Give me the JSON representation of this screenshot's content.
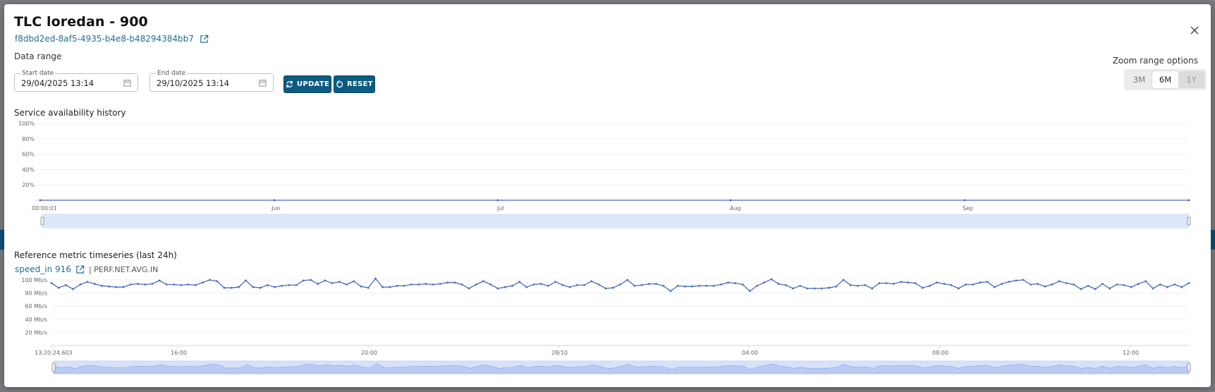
{
  "modal": {
    "title": "TLC loredan - 900",
    "uuid": "f8dbd2ed-8af5-4935-b4e8-b48294384bb7",
    "data_range_label": "Data range",
    "start_date": {
      "legend": "Start date",
      "value": "29/04/2025 13:14"
    },
    "end_date": {
      "legend": "End date",
      "value": "29/10/2025 13:14"
    },
    "update_label": "UPDATE",
    "reset_label": "RESET",
    "zoom": {
      "label": "Zoom range options",
      "options": [
        "3M",
        "6M",
        "1Y"
      ],
      "active": "6M",
      "disabled": "1Y"
    },
    "availability_title": "Service availability history",
    "metric_title": "Reference metric timeseries (last 24h)",
    "metric_link": "speed_in 916",
    "metric_code": "| PERF.NET.AVG.IN"
  },
  "colors": {
    "accent": "#0d5b80",
    "line": "#4a6bbf",
    "navigator": "#d6e2fb"
  },
  "chart_data": [
    {
      "type": "line",
      "title": "Service availability history",
      "y_ticks": [
        "100%",
        "80%",
        "60%",
        "40%",
        "20%"
      ],
      "ylim": [
        0,
        100
      ],
      "x_ticks": [
        "00:00:01",
        "Jun",
        "Jul",
        "Aug",
        "Sep"
      ],
      "series": [
        {
          "values": [
            0,
            0,
            0,
            0,
            0,
            0
          ]
        }
      ]
    },
    {
      "type": "line",
      "title": "Reference metric timeseries (last 24h)",
      "y_ticks": [
        "100 Mb/s",
        "80 Mb/s",
        "60 Mb/s",
        "40 Mb/s",
        "20 Mb/s"
      ],
      "ylim": [
        0,
        100
      ],
      "x_ticks": [
        "13:20:24.603",
        "16:00",
        "20:00",
        "28/10",
        "04:00",
        "08:00",
        "12:00"
      ],
      "series": [
        {
          "values": [
            95,
            88,
            92,
            86,
            93,
            97,
            94,
            91,
            90,
            89,
            89,
            93,
            94,
            93,
            94,
            99,
            93,
            93,
            92,
            93,
            92,
            96,
            100,
            98,
            88,
            88,
            89,
            99,
            89,
            88,
            92,
            89,
            91,
            92,
            92,
            99,
            100,
            94,
            99,
            95,
            97,
            93,
            98,
            90,
            88,
            102,
            89,
            89,
            91,
            91,
            93,
            93,
            94,
            93,
            94,
            96,
            96,
            93,
            87,
            93,
            98,
            93,
            87,
            89,
            91,
            97,
            89,
            93,
            94,
            91,
            97,
            92,
            89,
            92,
            92,
            98,
            93,
            87,
            88,
            93,
            100,
            91,
            92,
            94,
            94,
            91,
            83,
            91,
            90,
            90,
            91,
            91,
            91,
            93,
            96,
            95,
            93,
            83,
            91,
            96,
            101,
            94,
            92,
            87,
            91,
            87,
            87,
            87,
            88,
            90,
            100,
            92,
            91,
            92,
            87,
            95,
            95,
            94,
            97,
            96,
            95,
            88,
            91,
            96,
            94,
            92,
            87,
            93,
            93,
            96,
            97,
            89,
            94,
            97,
            99,
            100,
            93,
            94,
            90,
            93,
            98,
            95,
            93,
            86,
            91,
            86,
            94,
            87,
            93,
            92,
            89,
            94,
            98,
            87,
            93,
            89,
            93,
            89,
            95
          ]
        }
      ]
    }
  ]
}
